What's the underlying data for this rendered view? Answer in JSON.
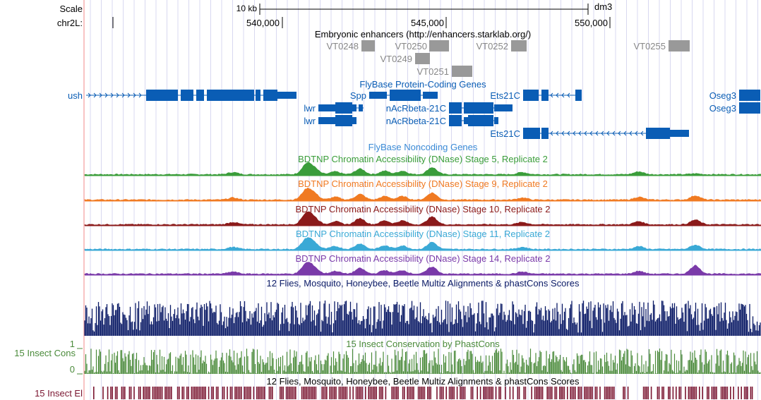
{
  "header": {
    "scale_label": "Scale",
    "scale_bar_label": "10 kb",
    "assembly": "dm3",
    "chrom_label": "chr2L:",
    "positions": [
      "540,000",
      "545,000",
      "550,000"
    ]
  },
  "tracks": {
    "enhancers": {
      "title": "Embryonic enhancers (http://enhancers.starklab.org/)",
      "items": [
        "VT0248",
        "VT0250",
        "VT0252",
        "VT0255",
        "VT0249",
        "VT0251"
      ]
    },
    "coding": {
      "title": "FlyBase Protein-Coding Genes",
      "genes": [
        "ush",
        "Spp",
        "Ets21C",
        "Oseg3",
        "lwr",
        "nAcRbeta-21C",
        "Oseg3",
        "lwr",
        "nAcRbeta-21C",
        "Ets21C"
      ]
    },
    "noncoding": {
      "title": "FlyBase Noncoding Genes"
    },
    "dnase": [
      {
        "title": "BDTNP Chromatin Accessibility (DNase) Stage 5, Replicate 2",
        "color": "#3a9d3a"
      },
      {
        "title": "BDTNP Chromatin Accessibility (DNase) Stage 9, Replicate 2",
        "color": "#f07a22"
      },
      {
        "title": "BDTNP Chromatin Accessibility (DNase) Stage 10, Replicate 2",
        "color": "#8b1a1a"
      },
      {
        "title": "BDTNP Chromatin Accessibility (DNase) Stage 11, Replicate 2",
        "color": "#3aa9d6"
      },
      {
        "title": "BDTNP Chromatin Accessibility (DNase) Stage 14, Replicate 2",
        "color": "#7a3aa9"
      }
    ],
    "multiz": {
      "title": "12 Flies, Mosquito, Honeybee, Beetle Multiz Alignments & phastCons Scores",
      "color": "#0a1a66"
    },
    "phastcons": {
      "title": "15 Insect Conservation by PhastCons",
      "side_label": "15 Insect Cons",
      "ymax": "1",
      "ymin": "0",
      "color": "#4a8a3a"
    },
    "elements": {
      "title": "12 Flies, Mosquito, Honeybee, Beetle Multiz Alignments & phastCons Scores",
      "side_label": "15 Insect El",
      "color": "#7a1530"
    }
  },
  "colors": {
    "gene": "#0a5db5",
    "enhancer": "#999999",
    "grid": "#d8d8f0",
    "side_line": "#f08a8a"
  }
}
